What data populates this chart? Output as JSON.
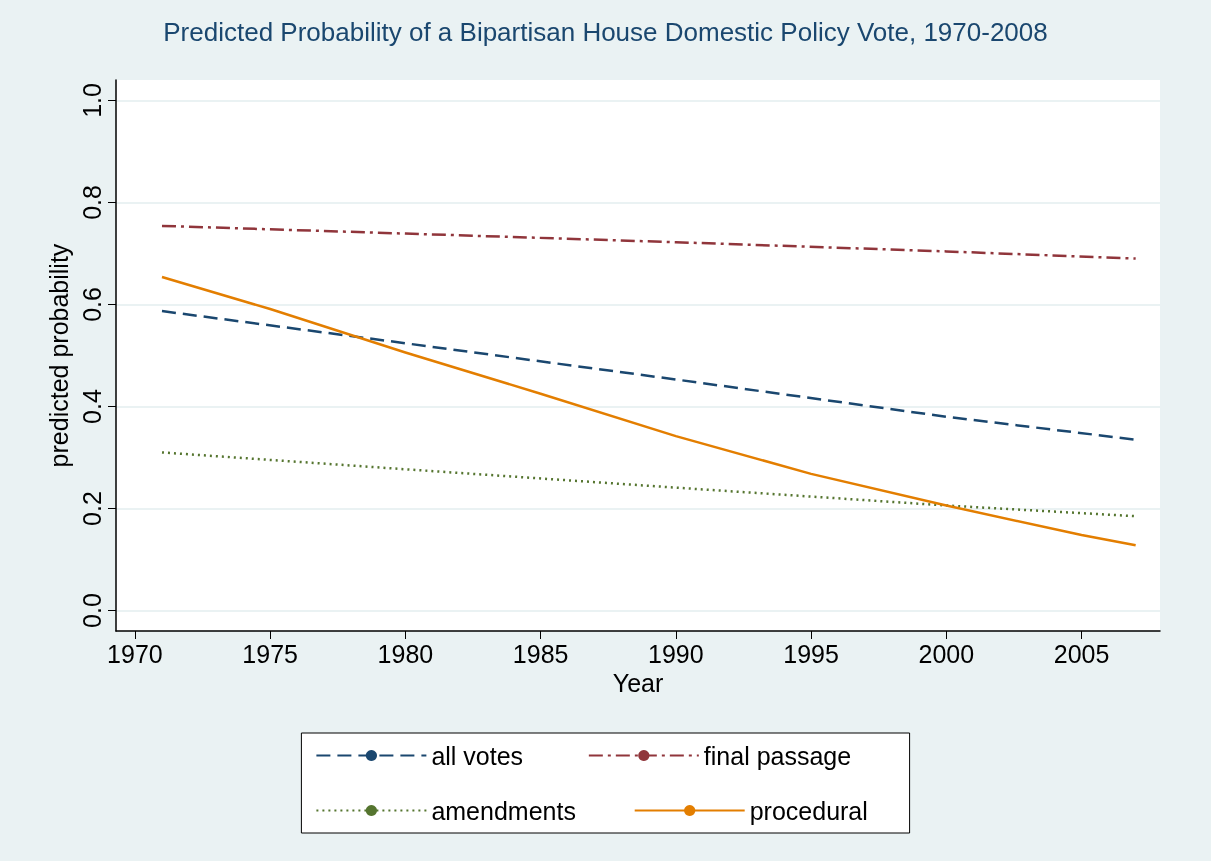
{
  "chart_data": {
    "type": "line",
    "title": "Predicted Probability of a Bipartisan House Domestic Policy Vote, 1970-2008",
    "xlabel": "Year",
    "ylabel": "predicted probability",
    "series": [
      {
        "name": "all votes",
        "color": "#1a476f",
        "line_style": "dashed",
        "x": [
          1971,
          1980,
          1990,
          2000,
          2007
        ],
        "values": [
          0.587,
          0.524,
          0.453,
          0.38,
          0.335
        ]
      },
      {
        "name": "final passage",
        "color": "#90353b",
        "line_style": "dashdot",
        "x": [
          1971,
          1980,
          1990,
          2000,
          2007
        ],
        "values": [
          0.754,
          0.739,
          0.722,
          0.704,
          0.69
        ]
      },
      {
        "name": "amendments",
        "color": "#55752f",
        "line_style": "dotted",
        "x": [
          1971,
          1980,
          1990,
          2000,
          2007
        ],
        "values": [
          0.31,
          0.277,
          0.241,
          0.206,
          0.185
        ]
      },
      {
        "name": "procedural",
        "color": "#e37e00",
        "line_style": "solid",
        "x": [
          1971,
          1975,
          1980,
          1985,
          1990,
          1995,
          2000,
          2005,
          2007
        ],
        "values": [
          0.654,
          0.591,
          0.506,
          0.425,
          0.342,
          0.268,
          0.206,
          0.148,
          0.128
        ]
      }
    ],
    "xlim": [
      1969.3,
      2007.9
    ],
    "xticks": [
      1970,
      1975,
      1980,
      1985,
      1990,
      1995,
      2000,
      2005
    ],
    "ylim": [
      -0.04,
      1.04
    ],
    "yticks": [
      {
        "value": 0,
        "label": "0.0"
      },
      0.2,
      0.4,
      0.6,
      0.8,
      {
        "value": 1,
        "label": "1.0"
      }
    ],
    "grid": "y",
    "legend": "bottom",
    "marker": "none"
  }
}
